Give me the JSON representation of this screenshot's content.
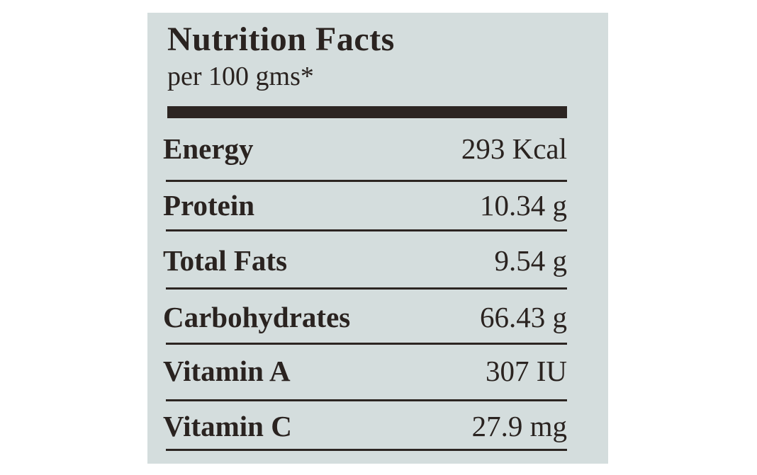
{
  "header": {
    "title": "Nutrition Facts",
    "subtitle": "per 100 gms*"
  },
  "rows": [
    {
      "name": "Energy",
      "value": "293 Kcal"
    },
    {
      "name": "Protein",
      "value": "10.34 g"
    },
    {
      "name": "Total Fats",
      "value": "9.54 g"
    },
    {
      "name": "Carbohydrates",
      "value": "66.43 g"
    },
    {
      "name": "Vitamin A",
      "value": "307 IU"
    },
    {
      "name": "Vitamin C",
      "value": "27.9 mg"
    }
  ]
}
